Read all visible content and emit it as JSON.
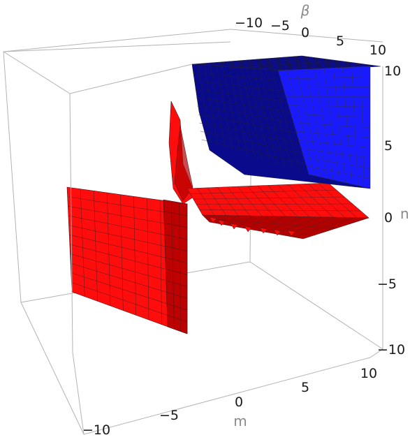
{
  "chart_data": {
    "type": "surface3d",
    "title": "",
    "axes": {
      "m": {
        "label": "m",
        "range": [
          -10,
          10
        ],
        "ticks": [
          "-10",
          "-5",
          "0",
          "5",
          "10"
        ]
      },
      "n": {
        "label": "n",
        "range": [
          -10,
          10
        ],
        "ticks": [
          "-10",
          "-5",
          "0",
          "5",
          "10"
        ]
      },
      "beta": {
        "label": "β",
        "range": [
          -10,
          10
        ],
        "ticks": [
          "-10",
          "-5",
          "0",
          "5",
          "10"
        ]
      }
    },
    "series": [
      {
        "color": "#1a1aff",
        "shade": "#0a0a8c"
      },
      {
        "color": "#ff0d0d",
        "shade": "#b30000"
      }
    ],
    "grid": false,
    "boxed": true
  }
}
